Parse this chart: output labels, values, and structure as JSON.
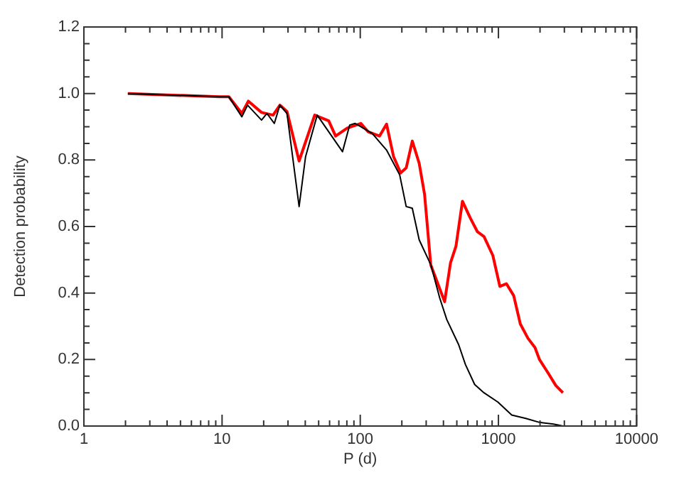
{
  "chart_data": {
    "type": "line",
    "xlabel": "P (d)",
    "ylabel": "Detection probability",
    "log": "x",
    "grid": false,
    "legend": false,
    "marker": "none",
    "line_style": "solid",
    "xlim": [
      1,
      10000
    ],
    "ylim": [
      0,
      1.2
    ],
    "xticks": [
      1,
      {
        "value": 2,
        "label": null
      },
      {
        "value": 3,
        "label": null
      },
      {
        "value": 4,
        "label": null
      },
      {
        "value": 5,
        "label": null
      },
      {
        "value": 6,
        "label": null
      },
      {
        "value": 7,
        "label": null
      },
      {
        "value": 8,
        "label": null
      },
      {
        "value": 9,
        "label": null
      },
      10,
      {
        "value": 20,
        "label": null
      },
      {
        "value": 30,
        "label": null
      },
      {
        "value": 40,
        "label": null
      },
      {
        "value": 50,
        "label": null
      },
      {
        "value": 60,
        "label": null
      },
      {
        "value": 70,
        "label": null
      },
      {
        "value": 80,
        "label": null
      },
      {
        "value": 90,
        "label": null
      },
      100,
      {
        "value": 200,
        "label": null
      },
      {
        "value": 300,
        "label": null
      },
      {
        "value": 400,
        "label": null
      },
      {
        "value": 500,
        "label": null
      },
      {
        "value": 600,
        "label": null
      },
      {
        "value": 700,
        "label": null
      },
      {
        "value": 800,
        "label": null
      },
      {
        "value": 900,
        "label": null
      },
      1000,
      {
        "value": 2000,
        "label": null
      },
      {
        "value": 3000,
        "label": null
      },
      {
        "value": 4000,
        "label": null
      },
      {
        "value": 5000,
        "label": null
      },
      {
        "value": 6000,
        "label": null
      },
      {
        "value": 7000,
        "label": null
      },
      {
        "value": 8000,
        "label": null
      },
      {
        "value": 9000,
        "label": null
      },
      10000
    ],
    "yticks": [
      {
        "value": 0,
        "label": "0.0"
      },
      {
        "value": 0.05,
        "label": null
      },
      {
        "value": 0.1,
        "label": null
      },
      {
        "value": 0.15,
        "label": null
      },
      0.2,
      {
        "value": 0.25,
        "label": null
      },
      {
        "value": 0.3,
        "label": null
      },
      {
        "value": 0.35,
        "label": null
      },
      0.4,
      {
        "value": 0.45,
        "label": null
      },
      {
        "value": 0.5,
        "label": null
      },
      {
        "value": 0.55,
        "label": null
      },
      0.6,
      {
        "value": 0.65,
        "label": null
      },
      {
        "value": 0.7,
        "label": null
      },
      {
        "value": 0.75,
        "label": null
      },
      0.8,
      {
        "value": 0.85,
        "label": null
      },
      {
        "value": 0.9,
        "label": null
      },
      {
        "value": 0.95,
        "label": null
      },
      {
        "value": 1,
        "label": "1.0"
      },
      {
        "value": 1.05,
        "label": null
      },
      {
        "value": 1.1,
        "label": null
      },
      {
        "value": 1.15,
        "label": null
      },
      1.2
    ],
    "series": [
      {
        "color": "#000000",
        "x": [
          2.08,
          9.6,
          11.2,
          13.9,
          15.3,
          19.3,
          21.1,
          23.9,
          26.2,
          29.5,
          36.1,
          40.2,
          48.8,
          74.4,
          83.8,
          91.9,
          122,
          155,
          193,
          215,
          238,
          267,
          324,
          376,
          423,
          515,
          577,
          673,
          786,
          991,
          1248,
          1576,
          1982,
          2503,
          2930
        ],
        "values": [
          1.0,
          0.99,
          0.99,
          0.93,
          0.965,
          0.92,
          0.94,
          0.91,
          0.965,
          0.94,
          0.66,
          0.81,
          0.935,
          0.825,
          0.905,
          0.91,
          0.88,
          0.83,
          0.755,
          0.66,
          0.655,
          0.56,
          0.485,
          0.385,
          0.32,
          0.245,
          0.185,
          0.125,
          0.1,
          0.072,
          0.033,
          0.023,
          0.011,
          0.006,
          0.0
        ]
      },
      {
        "color": "#ff0000",
        "x": [
          2.08,
          9.6,
          11.2,
          13.9,
          15.5,
          19.3,
          23.4,
          26.2,
          29.5,
          36.1,
          46.8,
          59.1,
          66.3,
          80.5,
          101,
          114,
          138,
          155,
          174,
          196,
          215,
          238,
          267,
          292,
          324,
          408,
          450,
          493,
          549,
          625,
          705,
          786,
          911,
          1024,
          1142,
          1290,
          1440,
          1635,
          1839,
          1982,
          2300,
          2600,
          2930
        ],
        "values": [
          1.0,
          0.99,
          0.99,
          0.94,
          0.977,
          0.943,
          0.935,
          0.965,
          0.946,
          0.797,
          0.935,
          0.918,
          0.872,
          0.896,
          0.91,
          0.885,
          0.872,
          0.908,
          0.811,
          0.761,
          0.776,
          0.857,
          0.79,
          0.697,
          0.484,
          0.374,
          0.491,
          0.541,
          0.676,
          0.626,
          0.584,
          0.57,
          0.513,
          0.42,
          0.428,
          0.392,
          0.307,
          0.264,
          0.236,
          0.2,
          0.158,
          0.122,
          0.1
        ]
      }
    ]
  }
}
